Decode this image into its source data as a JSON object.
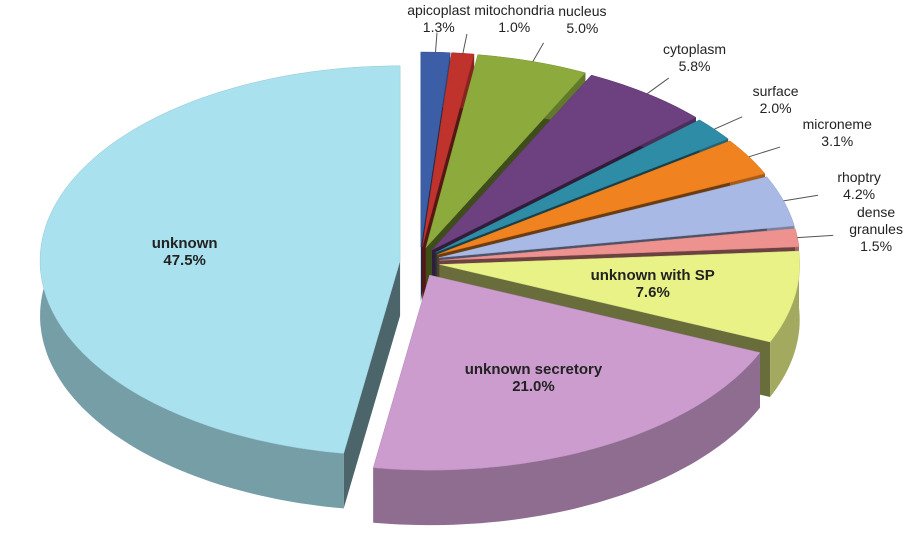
{
  "chart_data": {
    "type": "pie3d",
    "categories": [
      "apicoplast",
      "mitochondria",
      "nucleus",
      "cytoplasm",
      "surface",
      "microneme",
      "rhoptry",
      "dense granules",
      "unknown with SP",
      "unknown secretory",
      "unknown"
    ],
    "values": [
      1.3,
      1.0,
      5.0,
      5.8,
      2.0,
      3.1,
      4.2,
      1.5,
      7.6,
      21.0,
      47.5
    ],
    "value_labels": [
      "1.3%",
      "1.0%",
      "5.0%",
      "5.8%",
      "2.0%",
      "3.1%",
      "4.2%",
      "1.5%",
      "7.6%",
      "21.0%",
      "47.5%"
    ],
    "colors": [
      "#3b5ea6",
      "#c0332c",
      "#8cab3c",
      "#6d4180",
      "#2f8ca6",
      "#f0821f",
      "#a9b9e6",
      "#ee9290",
      "#e9f286",
      "#cc9ccf",
      "#a9e1ee"
    ]
  }
}
